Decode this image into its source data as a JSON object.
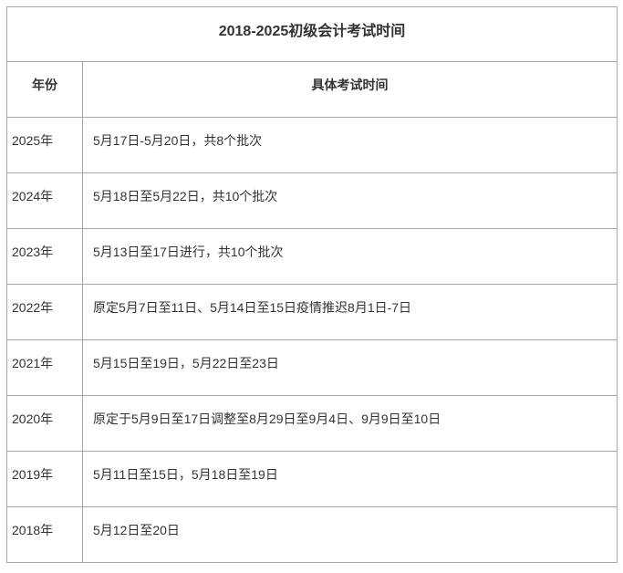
{
  "table": {
    "title": "2018-2025初级会计考试时间",
    "columns": {
      "year": "年份",
      "time": "具体考试时间"
    },
    "rows": [
      {
        "year": "2025年",
        "time": "5月17日-5月20日，共8个批次"
      },
      {
        "year": "2024年",
        "time": "5月18日至5月22日，共10个批次"
      },
      {
        "year": "2023年",
        "time": "5月13日至17日进行，共10个批次"
      },
      {
        "year": "2022年",
        "time": "原定5月7日至11日、5月14日至15日疫情推迟8月1日-7日"
      },
      {
        "year": "2021年",
        "time": "5月15日至19日，5月22日至23日"
      },
      {
        "year": "2020年",
        "time": "原定于5月9日至17日调整至8月29日至9月4日、9月9日至10日"
      },
      {
        "year": "2019年",
        "time": "5月11日至15日，5月18日至19日"
      },
      {
        "year": "2018年",
        "time": "5月12日至20日"
      }
    ],
    "colors": {
      "border": "#a7a7a7",
      "text": "#333333",
      "background": "#ffffff"
    }
  }
}
